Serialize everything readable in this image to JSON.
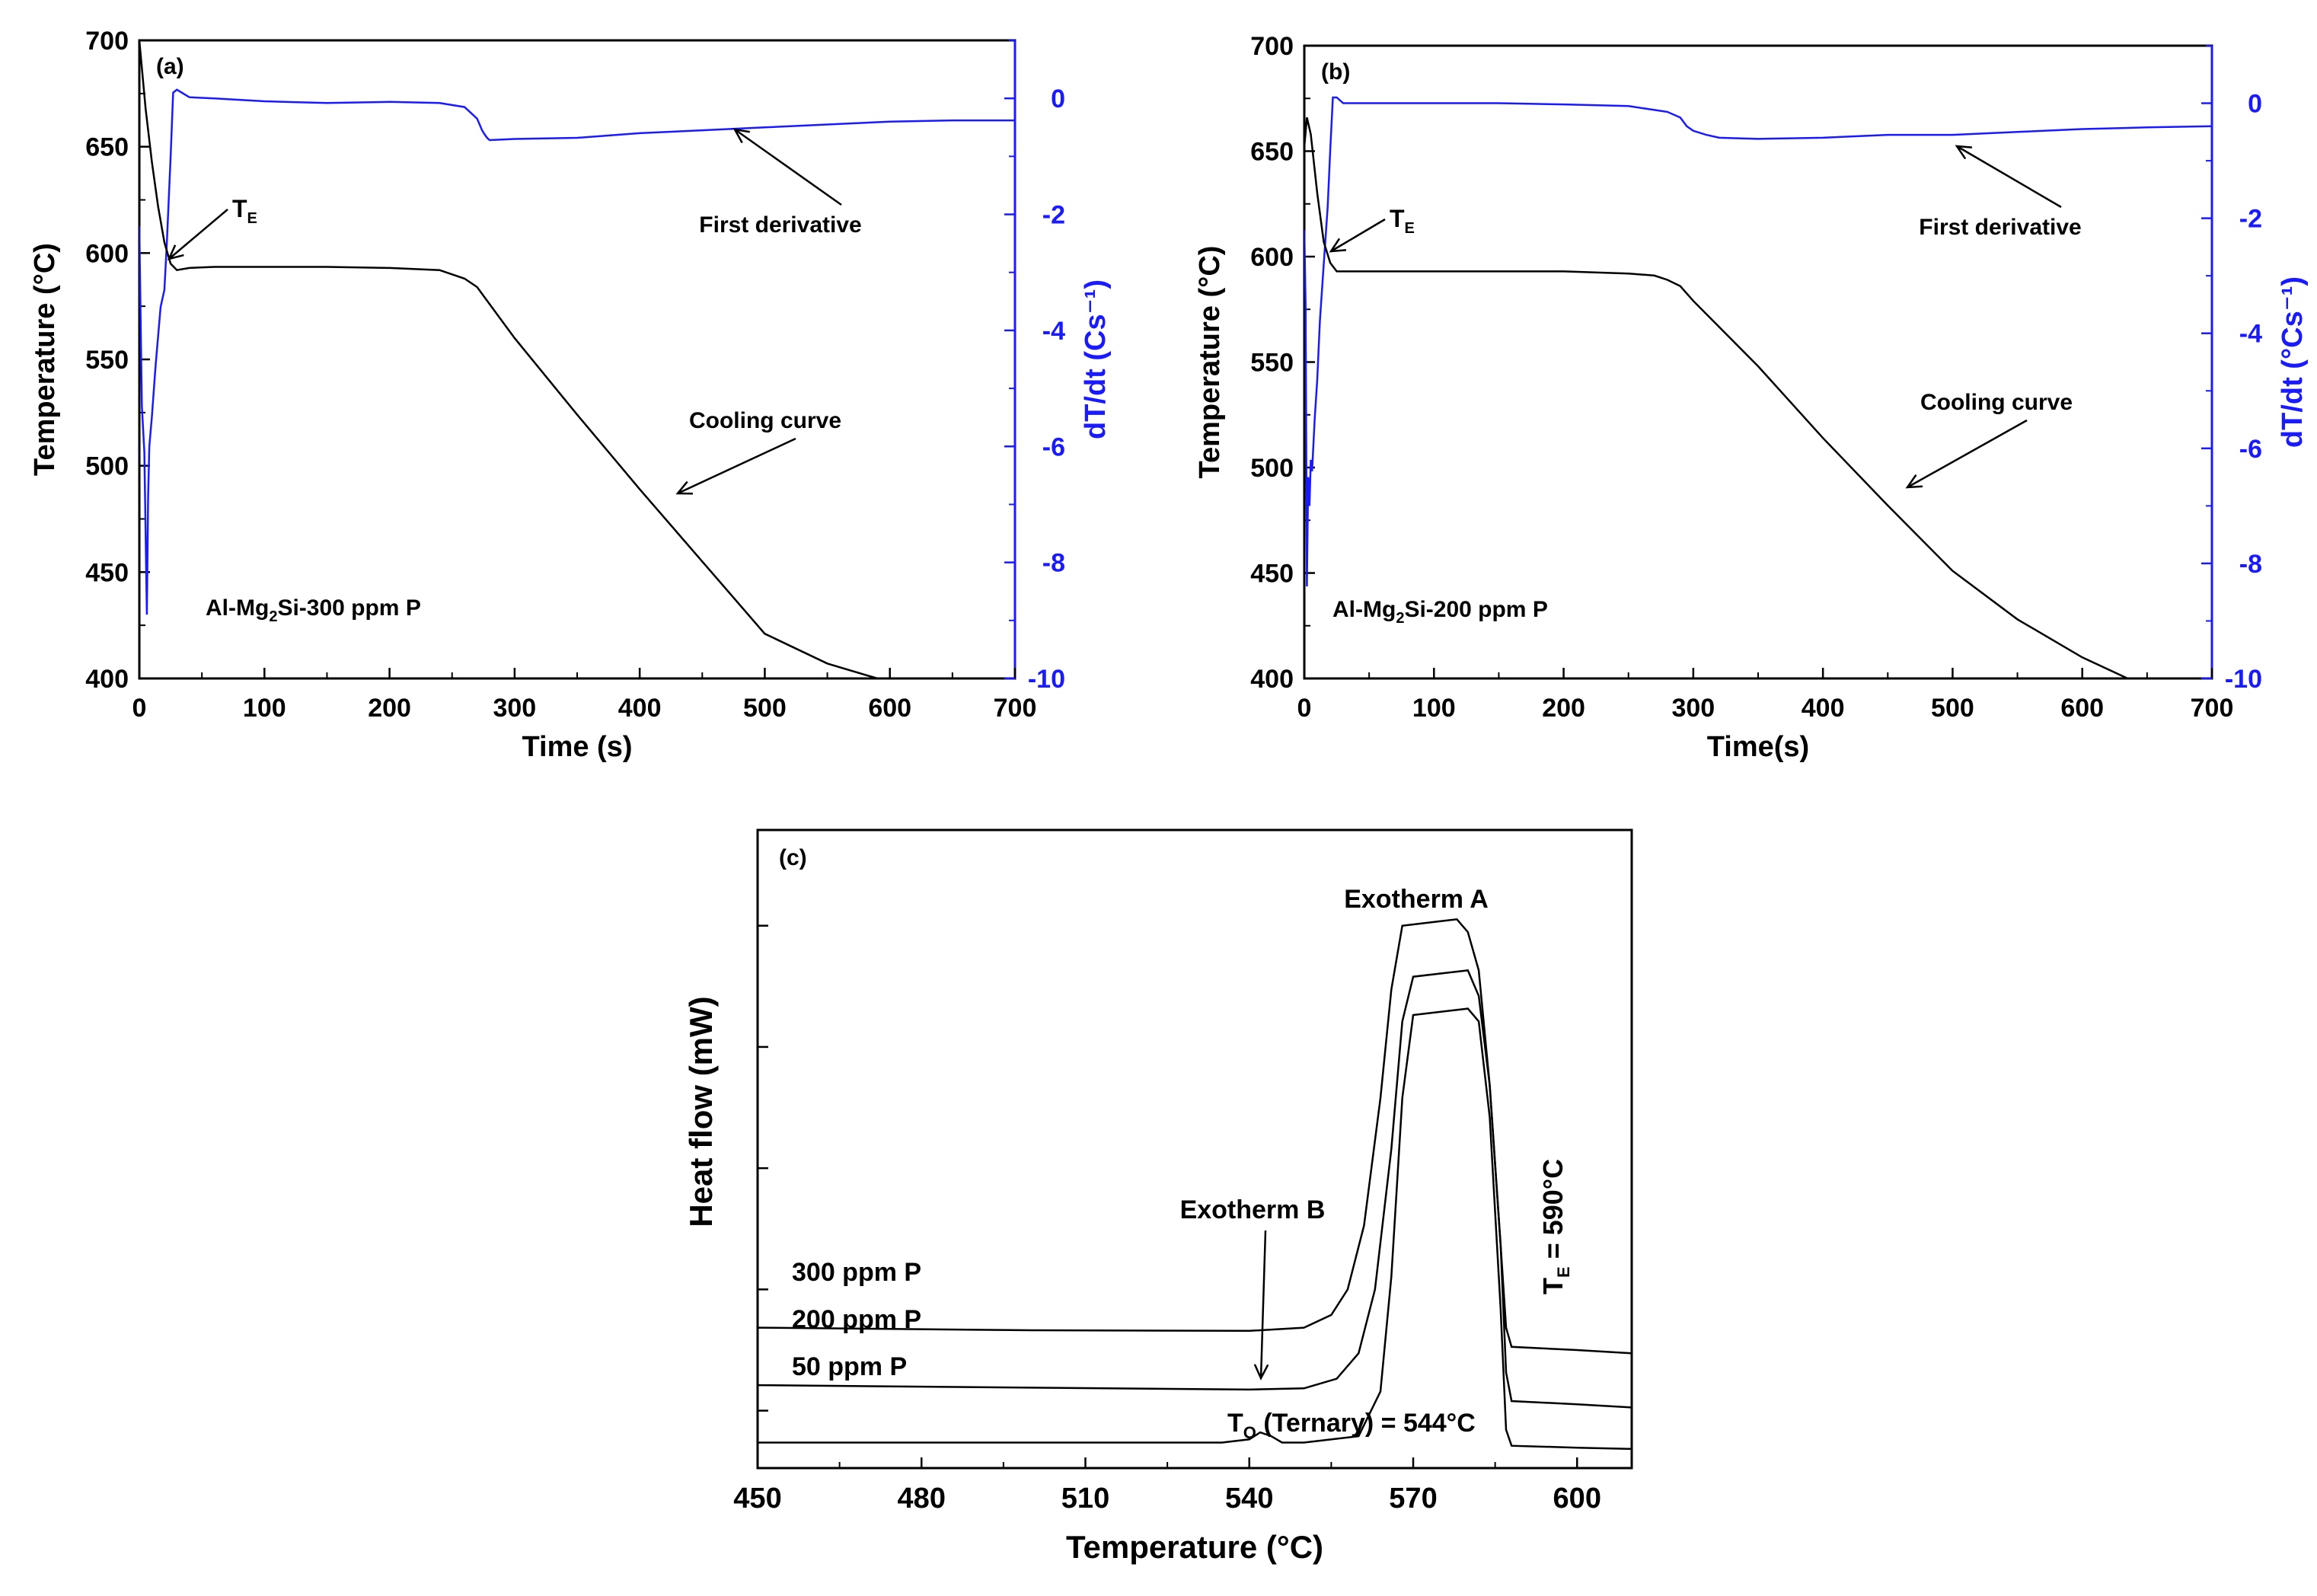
{
  "chart_data": [
    {
      "panel": "(a)",
      "type": "line",
      "xlabel": "Time (s)",
      "ylabel": "Temperature (°C)",
      "ylabel_right": "dT/dt (Cs⁻¹)",
      "xlim": [
        0,
        700
      ],
      "ylim": [
        400,
        700
      ],
      "y2lim": [
        -10,
        1
      ],
      "x_ticks": [
        "0",
        "100",
        "200",
        "300",
        "400",
        "500",
        "600",
        "700"
      ],
      "y_ticks": [
        "400",
        "450",
        "500",
        "550",
        "600",
        "650",
        "700"
      ],
      "y2_ticks": [
        "-10",
        "-8",
        "-6",
        "-4",
        "-2",
        "0"
      ],
      "series": [
        {
          "name": "Cooling curve",
          "axis": "left",
          "color": "#000000",
          "x": [
            0,
            5,
            10,
            15,
            20,
            25,
            30,
            40,
            60,
            100,
            150,
            200,
            240,
            260,
            270,
            275,
            300,
            350,
            400,
            450,
            500,
            550,
            590
          ],
          "y": [
            700,
            668,
            643,
            622,
            605,
            595,
            592,
            593,
            593.5,
            593.5,
            593.5,
            593,
            592,
            588,
            584,
            580,
            560,
            524,
            489,
            455,
            421,
            407,
            400
          ]
        },
        {
          "name": "First derivative",
          "axis": "right",
          "color": "#1a1aff",
          "x": [
            0,
            2,
            4,
            6,
            7,
            8,
            10,
            13,
            17,
            20,
            22,
            25,
            27,
            30,
            40,
            60,
            100,
            150,
            200,
            240,
            260,
            265,
            270,
            272,
            274,
            276,
            278,
            280,
            300,
            350,
            400,
            450,
            500,
            550,
            600,
            650,
            700
          ],
          "y": [
            -2.2,
            -5.3,
            -6.1,
            -8.9,
            -6.9,
            -6.0,
            -5.5,
            -4.6,
            -3.6,
            -3.3,
            -2.5,
            -1.0,
            0.1,
            0.15,
            0.02,
            0.0,
            -0.05,
            -0.08,
            -0.06,
            -0.08,
            -0.15,
            -0.25,
            -0.35,
            -0.45,
            -0.55,
            -0.62,
            -0.68,
            -0.72,
            -0.7,
            -0.68,
            -0.6,
            -0.55,
            -0.5,
            -0.45,
            -0.4,
            -0.38,
            -0.38
          ]
        }
      ],
      "annotations": {
        "te": "T",
        "te_sub": "E",
        "first_derivative": "First derivative",
        "cooling_curve": "Cooling curve",
        "sample_prefix": "Al-Mg",
        "sample_sub": "2",
        "sample_suffix": "Si-300 ppm P"
      }
    },
    {
      "panel": "(b)",
      "type": "line",
      "xlabel": "Time(s)",
      "ylabel": "Temperature (°C)",
      "ylabel_right": "dT/dt (°Cs⁻¹)",
      "xlim": [
        0,
        700
      ],
      "ylim": [
        400,
        700
      ],
      "y2lim": [
        -10,
        1
      ],
      "x_ticks": [
        "0",
        "100",
        "200",
        "300",
        "400",
        "500",
        "600",
        "700"
      ],
      "y_ticks": [
        "400",
        "450",
        "500",
        "550",
        "600",
        "650",
        "700"
      ],
      "y2_ticks": [
        "-10",
        "-8",
        "-6",
        "-4",
        "-2",
        "0"
      ],
      "series": [
        {
          "name": "Cooling curve",
          "axis": "left",
          "color": "#000000",
          "x": [
            0,
            2,
            5,
            10,
            15,
            20,
            25,
            30,
            50,
            100,
            150,
            200,
            250,
            270,
            280,
            290,
            300,
            350,
            400,
            450,
            500,
            550,
            600,
            635
          ],
          "y": [
            652,
            666,
            658,
            630,
            607,
            597,
            593,
            593,
            593,
            593,
            593,
            593,
            592,
            591,
            589,
            586,
            579,
            548,
            514,
            482,
            451,
            428,
            410,
            400
          ]
        },
        {
          "name": "First derivative",
          "axis": "right",
          "color": "#1a1aff",
          "x": [
            0,
            1,
            2,
            3,
            4,
            5,
            6,
            8,
            10,
            12,
            15,
            18,
            20,
            22,
            25,
            30,
            50,
            100,
            150,
            200,
            250,
            280,
            290,
            295,
            300,
            310,
            320,
            350,
            400,
            450,
            500,
            550,
            600,
            650,
            700
          ],
          "y": [
            -2.2,
            -3.5,
            -8.4,
            -6.5,
            -7.0,
            -6.2,
            -6.4,
            -5.5,
            -4.8,
            -3.8,
            -2.8,
            -1.8,
            -0.8,
            0.1,
            0.1,
            0.0,
            0.0,
            0.0,
            0.0,
            -0.02,
            -0.05,
            -0.15,
            -0.25,
            -0.4,
            -0.48,
            -0.55,
            -0.6,
            -0.62,
            -0.6,
            -0.55,
            -0.55,
            -0.5,
            -0.45,
            -0.42,
            -0.4
          ]
        }
      ],
      "annotations": {
        "te": "T",
        "te_sub": "E",
        "first_derivative": "First derivative",
        "cooling_curve": "Cooling curve",
        "sample_prefix": "Al-Mg",
        "sample_sub": "2",
        "sample_suffix": "Si-200 ppm P"
      }
    },
    {
      "panel": "(c)",
      "type": "line",
      "xlabel": "Temperature (°C)",
      "ylabel": "Heat flow (mW)",
      "xlim": [
        450,
        610
      ],
      "ylim": [
        0,
        100
      ],
      "x_ticks": [
        "450",
        "480",
        "510",
        "540",
        "570",
        "600"
      ],
      "y_tick_values": [
        9,
        28,
        47,
        66,
        85
      ],
      "series": [
        {
          "name": "300 ppm P",
          "color": "#000000",
          "x": [
            450,
            500,
            540,
            550,
            555,
            558,
            561,
            564,
            566,
            568,
            573,
            578,
            580,
            582,
            584,
            586,
            587,
            588,
            600,
            610
          ],
          "y": [
            22,
            21.6,
            21.5,
            22,
            24,
            28,
            38,
            58,
            75,
            85,
            85.5,
            86,
            84,
            78,
            60,
            35,
            22,
            19,
            18.5,
            18
          ]
        },
        {
          "name": "200 ppm P",
          "color": "#000000",
          "x": [
            450,
            500,
            540,
            550,
            556,
            560,
            563,
            566,
            568,
            570,
            575,
            580,
            582,
            584,
            586,
            587,
            588,
            600,
            610
          ],
          "y": [
            13,
            12.6,
            12.3,
            12.5,
            14,
            18,
            28,
            50,
            70,
            77,
            77.5,
            78,
            74,
            60,
            35,
            15,
            10.5,
            10,
            9.5
          ]
        },
        {
          "name": "50 ppm P",
          "color": "#000000",
          "x": [
            450,
            500,
            535,
            540,
            542,
            544,
            546,
            550,
            560,
            564,
            566,
            568,
            570,
            580,
            582,
            584,
            586,
            587,
            588,
            600,
            610
          ],
          "y": [
            4,
            4,
            4,
            4.5,
            5.6,
            5,
            4,
            4,
            5,
            12,
            30,
            58,
            71,
            72,
            70,
            55,
            25,
            6,
            3.5,
            3.2,
            3
          ]
        }
      ],
      "annotations": {
        "exotherm_a": "Exotherm A",
        "exotherm_b": "Exotherm B",
        "te_label": "T",
        "te_sub": "E",
        "te_value": " = 590°C",
        "to_label": "T",
        "to_sub": "O",
        "to_value": " (Ternary) = 544°C",
        "label_300": "300 ppm P",
        "label_200": "200 ppm P",
        "label_50": "50 ppm P"
      }
    }
  ],
  "colors": {
    "derivative_blue": "#1a1aff",
    "line_black": "#000000"
  }
}
